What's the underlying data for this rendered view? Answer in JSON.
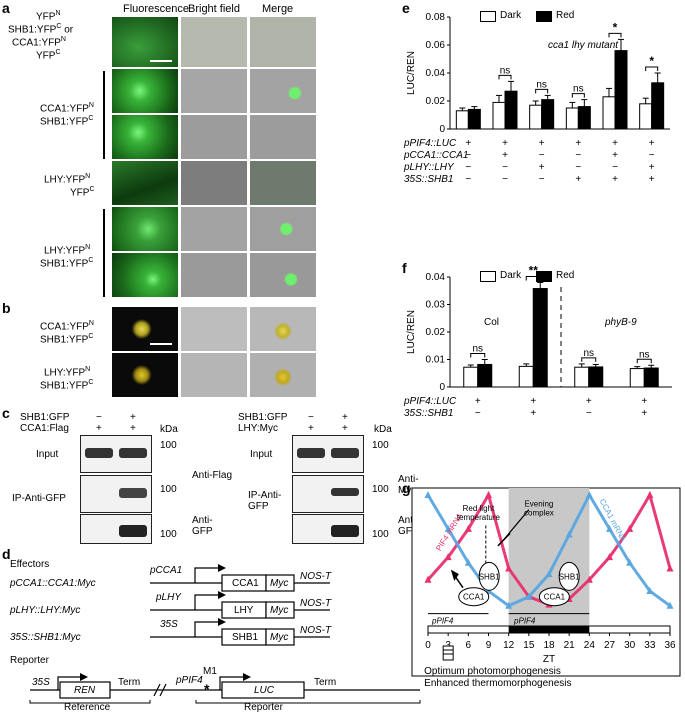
{
  "panels": {
    "a": "a",
    "b": "b",
    "c": "c",
    "d": "d",
    "e": "e",
    "f": "f",
    "g": "g"
  },
  "a": {
    "headers": [
      "Fluorescence",
      "Bright field",
      "Merge"
    ],
    "row_labels": [
      [
        "YFP",
        "N",
        ""
      ],
      [
        "SHB1:YFP",
        "C",
        " or"
      ],
      [
        "CCA1:YFP",
        "N",
        ""
      ],
      [
        "YFP",
        "C",
        ""
      ]
    ],
    "group1": [
      [
        "CCA1:YFP",
        "N"
      ],
      [
        "SHB1:YFP",
        "C"
      ]
    ],
    "group2": [
      [
        "LHY:YFP",
        "N"
      ],
      [
        "YFP",
        "C"
      ]
    ],
    "group3": [
      [
        "LHY:YFP",
        "N"
      ],
      [
        "SHB1:YFP",
        "C"
      ]
    ]
  },
  "b": {
    "group1": [
      [
        "CCA1:YFP",
        "N"
      ],
      [
        "SHB1:YFP",
        "C"
      ]
    ],
    "group2": [
      [
        "LHY:YFP",
        "N"
      ],
      [
        "SHB1:YFP",
        "C"
      ]
    ]
  },
  "c": {
    "left": {
      "row1": "SHB1:GFP",
      "row2": "CCA1:Flag",
      "m1": "−",
      "m2": "+",
      "p1": "+",
      "p2": "+",
      "kda": "kDa",
      "input": "Input",
      "ip": "IP-Anti-GFP",
      "anti1": "Anti-Flag",
      "anti2": "Anti-GFP",
      "m100": "100"
    },
    "right": {
      "row1": "SHB1:GFP",
      "row2": "LHY:Myc",
      "m1": "−",
      "m2": "+",
      "p1": "+",
      "p2": "+",
      "kda": "kDa",
      "input": "Input",
      "ip": "IP-Anti-GFP",
      "anti1": "Anti-Myc",
      "anti2": "Anti-GFP",
      "m100": "100"
    }
  },
  "d": {
    "effectors": "Effectors",
    "constructs": [
      {
        "name": "pCCA1::CCA1:Myc",
        "promoter": "pCCA1",
        "gene": "CCA1",
        "tag": "Myc",
        "term": "NOS-T"
      },
      {
        "name": "pLHY::LHY:Myc",
        "promoter": "pLHY",
        "gene": "LHY",
        "tag": "Myc",
        "term": "NOS-T"
      },
      {
        "name": "35S::SHB1:Myc",
        "promoter": "35S",
        "gene": "SHB1",
        "tag": "Myc",
        "term": "NOS-T"
      }
    ],
    "reporter": "Reporter",
    "p35s": "35S",
    "ren": "REN",
    "term": "Term",
    "ppif4": "pPIF4",
    "m1": "M1",
    "luc": "LUC",
    "term2": "Term",
    "reference": "Reference",
    "reporter2": "Reporter"
  },
  "legend": {
    "dark": "Dark",
    "red": "Red"
  },
  "chart_data": [
    {
      "type": "bar",
      "panel": "e",
      "ylabel": "LUC/REN",
      "annotation": "cca1 lhy mutant",
      "ylim": [
        0,
        0.08
      ],
      "yticks": [
        "0",
        "0.02",
        "0.04",
        "0.06",
        "0.08"
      ],
      "categories": [
        "1",
        "2",
        "3",
        "4",
        "5",
        "6"
      ],
      "series": [
        {
          "name": "Dark",
          "values": [
            0.013,
            0.019,
            0.017,
            0.015,
            0.023,
            0.018
          ],
          "errors": [
            0.002,
            0.005,
            0.003,
            0.004,
            0.006,
            0.004
          ]
        },
        {
          "name": "Red",
          "values": [
            0.014,
            0.027,
            0.021,
            0.016,
            0.056,
            0.033
          ],
          "errors": [
            0.002,
            0.007,
            0.003,
            0.005,
            0.008,
            0.007
          ]
        }
      ],
      "significance": [
        "",
        "ns",
        "ns",
        "ns",
        "*",
        "*"
      ],
      "table": {
        "rows": [
          "pPIF4::LUC",
          "pCCA1::CCA1",
          "pLHY::LHY",
          "35S::SHB1"
        ],
        "values": [
          [
            "+",
            "+",
            "+",
            "+",
            "+",
            "+"
          ],
          [
            "−",
            "+",
            "−",
            "−",
            "+",
            "−"
          ],
          [
            "−",
            "−",
            "+",
            "−",
            "−",
            "+"
          ],
          [
            "−",
            "−",
            "−",
            "+",
            "+",
            "+"
          ]
        ]
      }
    },
    {
      "type": "bar",
      "panel": "f",
      "ylabel": "LUC/REN",
      "ylim": [
        0,
        0.04
      ],
      "yticks": [
        "0",
        "0.01",
        "0.02",
        "0.03",
        "0.04"
      ],
      "groups": [
        "Col",
        "phyB-9"
      ],
      "categories": [
        "1",
        "2",
        "3",
        "4"
      ],
      "series": [
        {
          "name": "Dark",
          "values": [
            0.0072,
            0.0075,
            0.0072,
            0.0067
          ],
          "errors": [
            0.0008,
            0.0009,
            0.0012,
            0.0007
          ]
        },
        {
          "name": "Red",
          "values": [
            0.0082,
            0.0358,
            0.0073,
            0.0069
          ],
          "errors": [
            0.0018,
            0.0022,
            0.0009,
            0.001
          ]
        }
      ],
      "significance": [
        "ns",
        "**",
        "ns",
        "ns"
      ],
      "table": {
        "rows": [
          "pPIF4::LUC",
          "35S::SHB1"
        ],
        "values": [
          [
            "+",
            "+",
            "+",
            "+"
          ],
          [
            "−",
            "+",
            "−",
            "+"
          ]
        ]
      }
    },
    {
      "type": "line",
      "panel": "g",
      "xlabel": "ZT",
      "xticks": [
        "0",
        "3",
        "6",
        "9",
        "12",
        "15",
        "18",
        "21",
        "24",
        "27",
        "30",
        "33",
        "36"
      ],
      "series": [
        {
          "name": "PIF4 mRNA",
          "color": "#e8316f",
          "x": [
            0,
            3,
            6,
            9,
            12,
            15,
            18,
            21,
            24,
            27,
            30,
            33,
            36
          ],
          "y": [
            0.25,
            0.45,
            0.7,
            1.0,
            0.35,
            0.1,
            0.03,
            0.08,
            0.25,
            0.45,
            0.7,
            1.0,
            0.35
          ]
        },
        {
          "name": "CCA1 mRNA",
          "color": "#5aa7e0",
          "x": [
            0,
            3,
            6,
            9,
            12,
            15,
            18,
            21,
            24,
            27,
            30,
            33,
            36
          ],
          "y": [
            1.0,
            0.7,
            0.4,
            0.15,
            0.02,
            0.1,
            0.3,
            0.65,
            1.0,
            0.7,
            0.4,
            0.15,
            0.02
          ]
        }
      ],
      "labels": {
        "redlight": "Red light",
        "temperature": "temperature",
        "evening1": "Evening",
        "evening2": "complex",
        "shb1": "SHB1",
        "cca1": "CCA1",
        "pif4": "pPIF4",
        "pif4b": "pPIF4",
        "out1": "Optimum photomorphogenesis",
        "out2": "Enhanced thermomorphogenesis"
      }
    }
  ]
}
